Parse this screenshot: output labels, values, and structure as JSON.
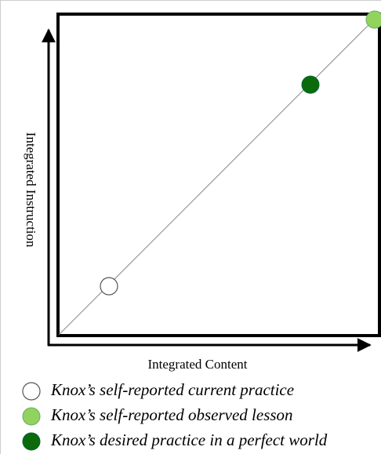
{
  "axes": {
    "x_label": "Integrated Content",
    "y_label": "Integrated Instruction"
  },
  "legend": [
    {
      "label": "Knox’s self-reported current practice"
    },
    {
      "label": "Knox’s self-reported observed lesson"
    },
    {
      "label": "Knox’s desired practice in a perfect world"
    }
  ]
}
